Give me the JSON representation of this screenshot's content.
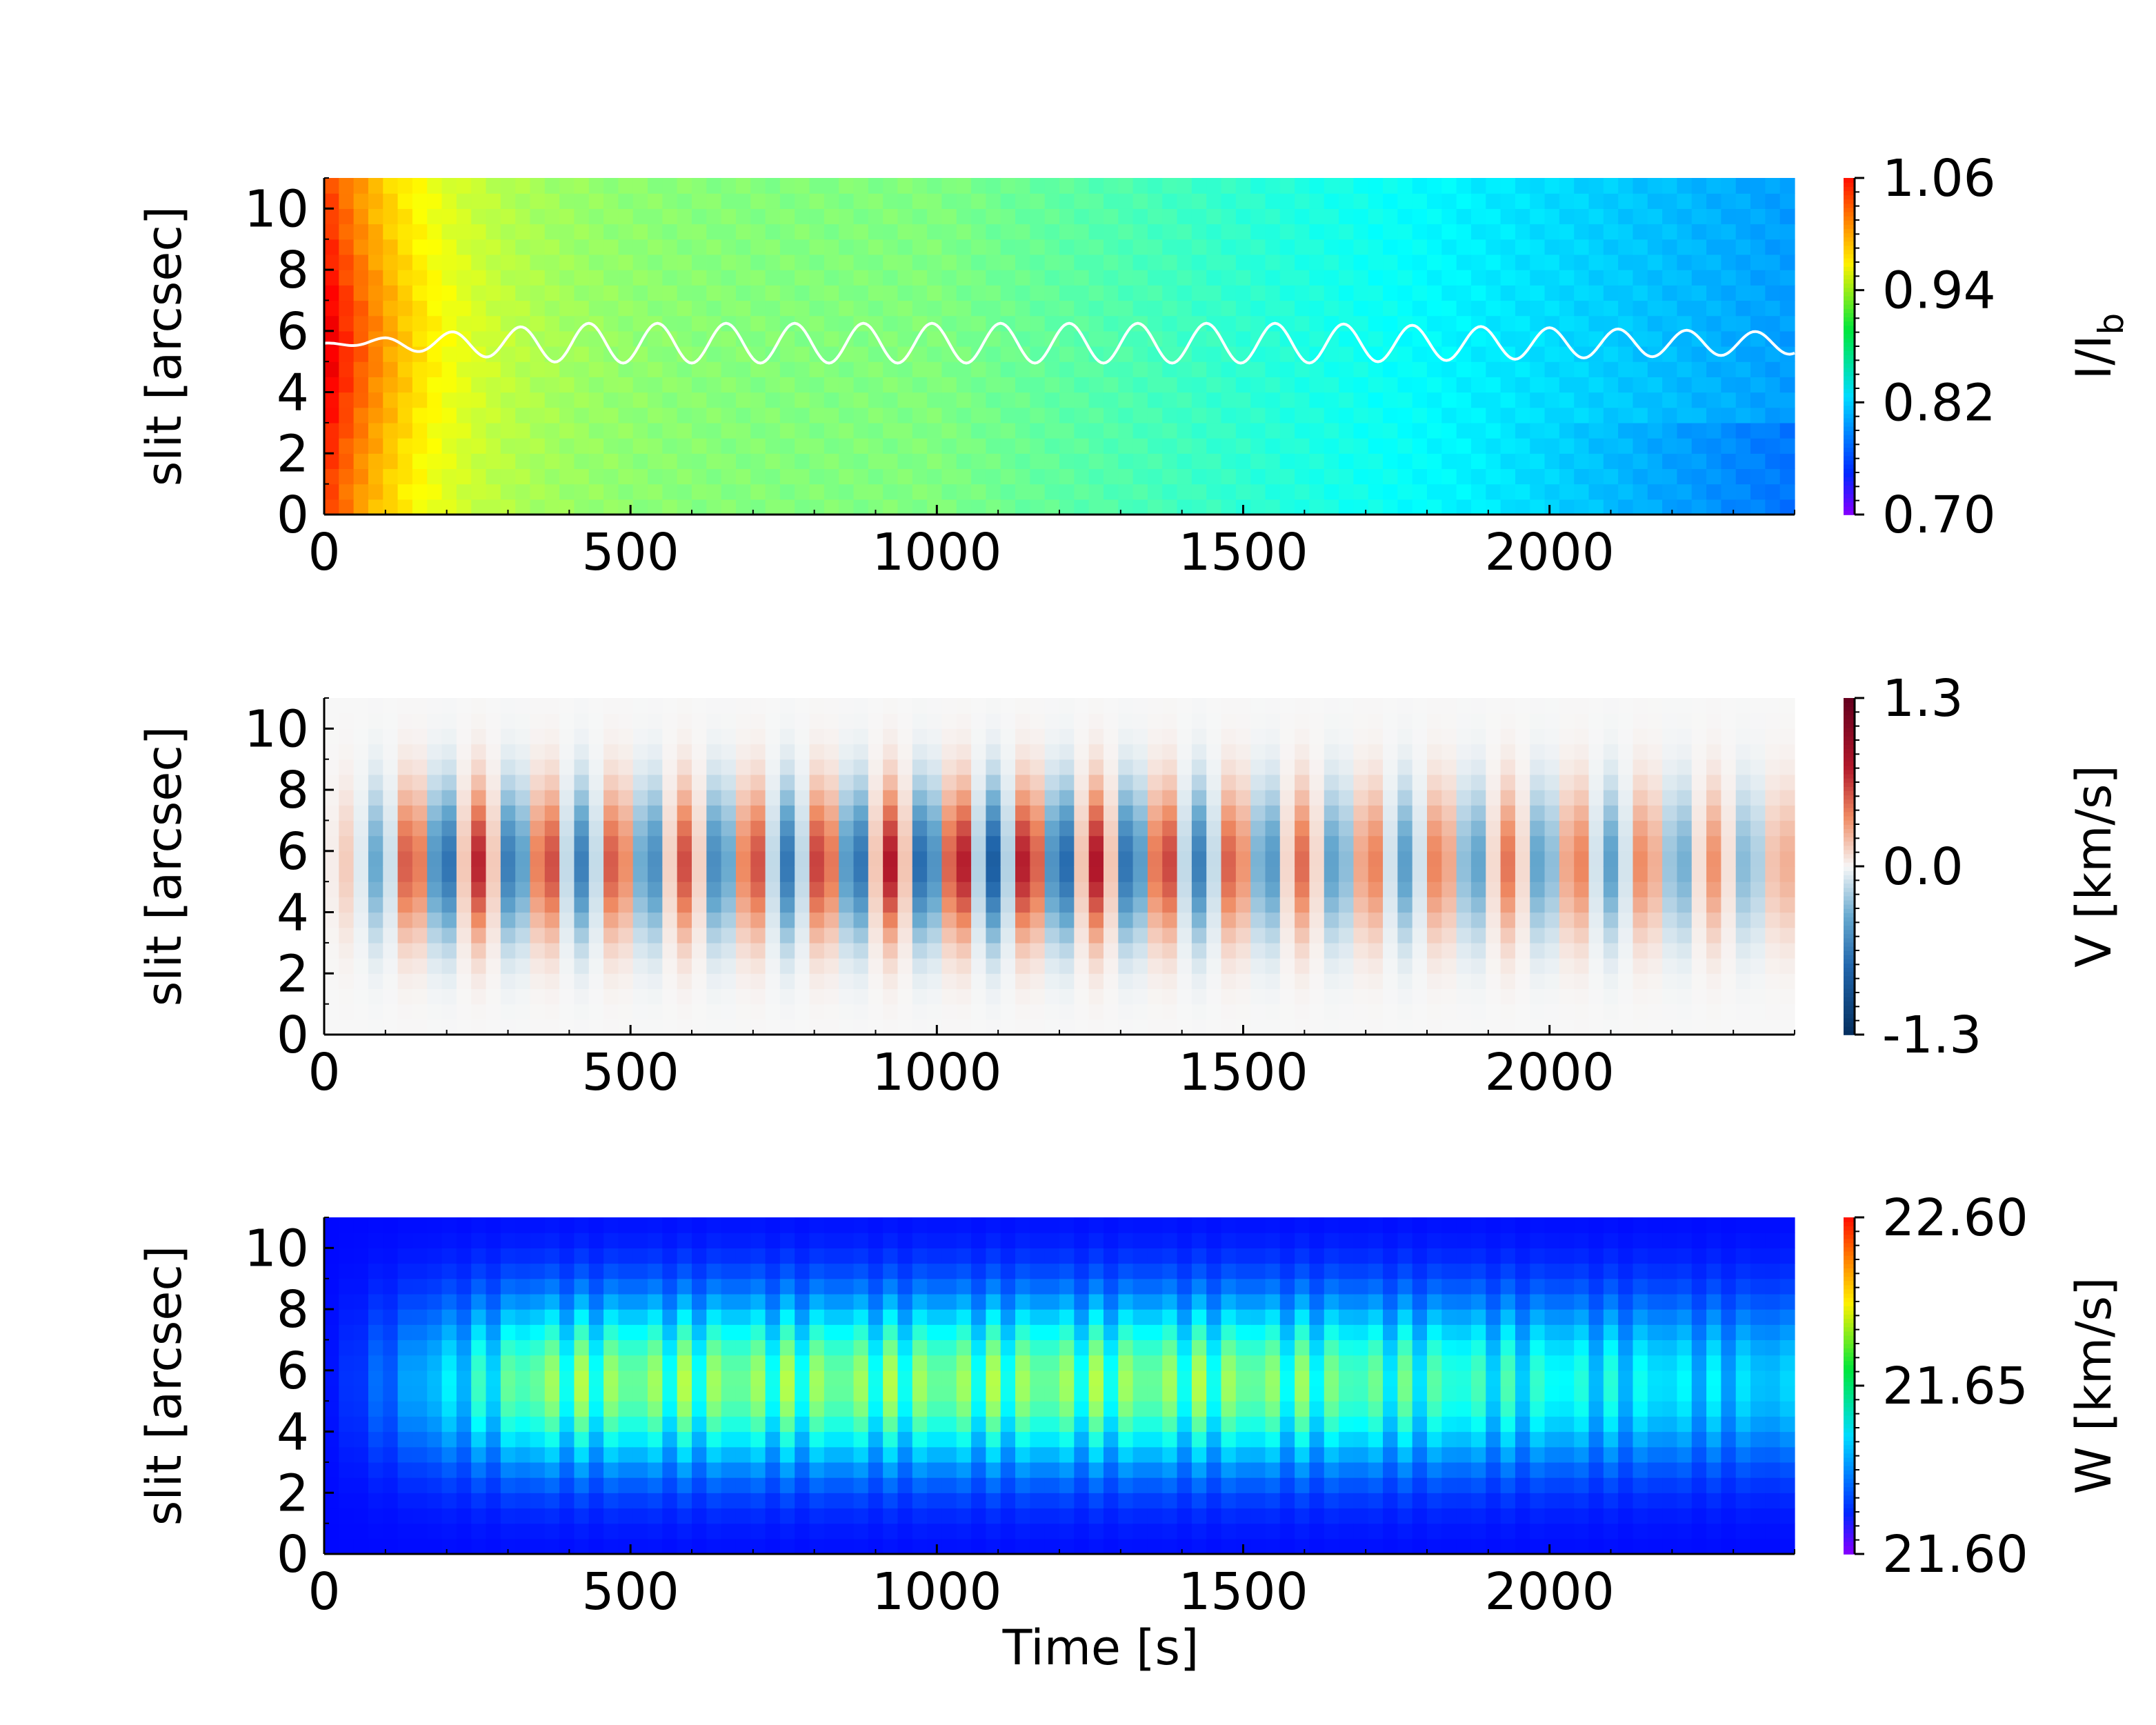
{
  "chart_data": [
    {
      "type": "heatmap",
      "panel": "intensity",
      "title": "",
      "xlabel": "",
      "ylabel": "slit [arcsec]",
      "xlim": [
        0,
        2400
      ],
      "ylim": [
        0,
        11
      ],
      "xticks": [
        0,
        500,
        1000,
        1500,
        2000
      ],
      "yticks": [
        0,
        2,
        4,
        6,
        8,
        10
      ],
      "colormap": "jet",
      "colorbar": {
        "label_main": "I/I",
        "label_sub": "b",
        "min": 0.7,
        "max": 1.06,
        "ticks": [
          "0.70",
          "0.82",
          "0.94",
          "1.06"
        ]
      },
      "field": {
        "description_values": "I/Ib ~1.03 near t=0 at slit 5-6, decaying to ~0.88 by t=1000 and ~0.80 by t=2400",
        "start_peak": 1.03,
        "mid_value": 0.88,
        "end_value": 0.8,
        "end_low_slit_value": 0.785
      },
      "overlay_line": {
        "color": "#ffffff",
        "center_slit": 5.6,
        "amplitude_arcsec": 0.65,
        "period_s": 112,
        "envelope": [
          [
            0,
            0.0
          ],
          [
            200,
            0.55
          ],
          [
            400,
            1.0
          ],
          [
            1600,
            1.0
          ],
          [
            2400,
            0.55
          ]
        ]
      }
    },
    {
      "type": "heatmap",
      "panel": "velocity",
      "title": "",
      "xlabel": "",
      "ylabel": "slit [arcsec]",
      "xlim": [
        0,
        2400
      ],
      "ylim": [
        0,
        11
      ],
      "xticks": [
        0,
        500,
        1000,
        1500,
        2000
      ],
      "yticks": [
        0,
        2,
        4,
        6,
        8,
        10
      ],
      "colormap": "RdBu_r",
      "colorbar": {
        "label_main": "V [km/s]",
        "label_sub": "",
        "min": -1.3,
        "max": 1.3,
        "ticks": [
          "-1.3",
          "0.0",
          "1.3"
        ]
      },
      "field": {
        "period_s": 112,
        "peak_amplitude": 0.85,
        "center_slit": 5.6,
        "width_arcsec": 2.3
      }
    },
    {
      "type": "heatmap",
      "panel": "width",
      "title": "",
      "xlabel": "Time [s]",
      "ylabel": "slit [arcsec]",
      "xlim": [
        0,
        2400
      ],
      "ylim": [
        0,
        11
      ],
      "xticks": [
        0,
        500,
        1000,
        1500,
        2000
      ],
      "yticks": [
        0,
        2,
        4,
        6,
        8,
        10
      ],
      "colormap": "jet",
      "colorbar": {
        "label_main": "W [km/s]",
        "label_sub": "",
        "min": 21.6,
        "max": 22.6,
        "ticks": [
          "21.60",
          "21.65",
          "22.60"
        ]
      },
      "field": {
        "baseline": 21.605,
        "period_s": 56,
        "peak_value": 21.67,
        "center_slit": 5.6,
        "width_arcsec": 2.8
      }
    }
  ]
}
